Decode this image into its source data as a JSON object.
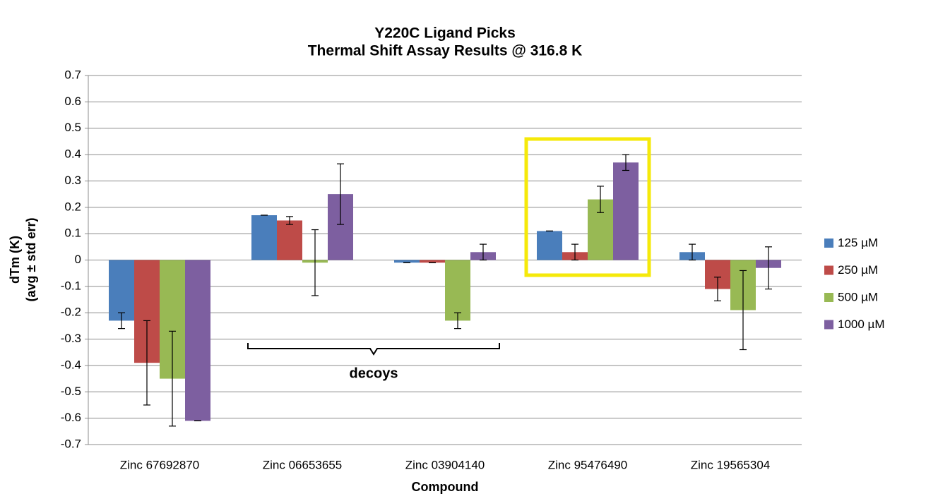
{
  "chart_data": {
    "type": "bar",
    "title": "Y220C Ligand Picks",
    "subtitle": "Thermal Shift Assay Results @ 316.8 K",
    "xlabel": "Compound",
    "ylabel": [
      "dTm (K)",
      "(avg ± std err)"
    ],
    "annotation": "decoys",
    "categories": [
      "Zinc 67692870",
      "Zinc 06653655",
      "Zinc 03904140",
      "Zinc 95476490",
      "Zinc 19565304"
    ],
    "series": [
      {
        "name": "125 µM",
        "color": "#4a7ebb",
        "values": [
          -0.23,
          0.17,
          -0.01,
          0.11,
          0.03
        ],
        "errors": [
          0.03,
          0,
          0,
          0,
          0.03
        ]
      },
      {
        "name": "250 µM",
        "color": "#be4b48",
        "values": [
          -0.39,
          0.15,
          -0.01,
          0.03,
          -0.11
        ],
        "errors": [
          0.16,
          0.015,
          0,
          0.03,
          0.045
        ]
      },
      {
        "name": "500 µM",
        "color": "#98b954",
        "values": [
          -0.45,
          -0.01,
          -0.23,
          0.23,
          -0.19
        ],
        "errors": [
          0.18,
          0.125,
          0.03,
          0.05,
          0.15
        ]
      },
      {
        "name": "1000 µM",
        "color": "#7d5fa0",
        "values": [
          -0.61,
          0.25,
          0.03,
          0.37,
          -0.03
        ],
        "errors": [
          0,
          0.115,
          0.03,
          0.03,
          0.08
        ]
      }
    ],
    "ylim": [
      -0.7,
      0.7
    ],
    "yticks": [
      -0.7,
      -0.6,
      -0.5,
      -0.4,
      -0.3,
      -0.2,
      -0.1,
      0,
      0.1,
      0.2,
      0.3,
      0.4,
      0.5,
      0.6,
      0.7
    ],
    "grid": true,
    "legend": "right"
  }
}
